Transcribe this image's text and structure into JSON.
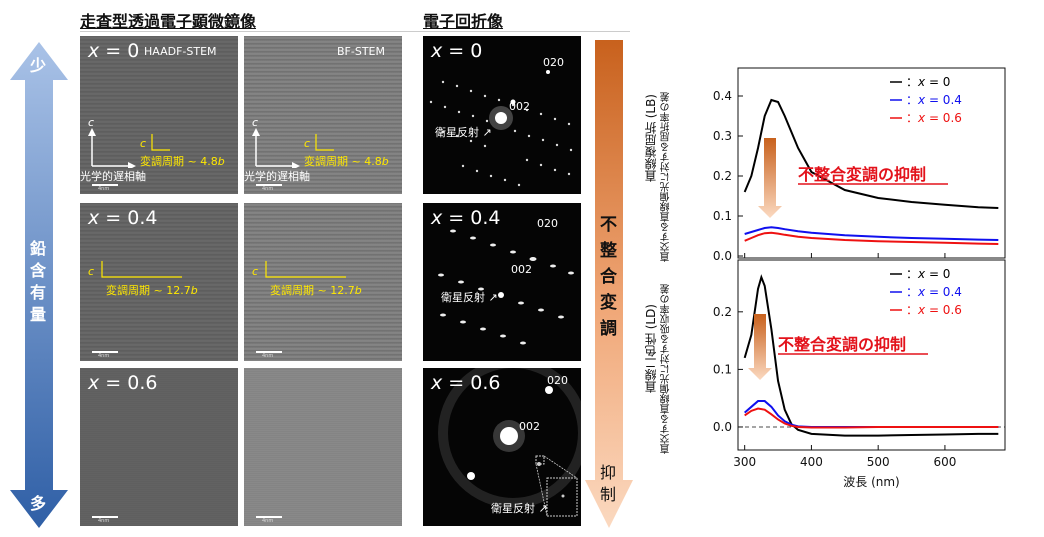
{
  "headers": {
    "stem": "走査型透過電子顕微鏡像",
    "diffraction": "電子回折像"
  },
  "left_arrow": {
    "top": "少",
    "middle": "鉛含有量",
    "bottom": "多"
  },
  "rows": [
    {
      "x_var": "x",
      "x_val": " = 0",
      "period": "変調周期 ~ 4.8",
      "period_unit": "b"
    },
    {
      "x_var": "x",
      "x_val": " = 0.4",
      "period": "変調周期 ~ 12.7",
      "period_unit": "b"
    },
    {
      "x_var": "x",
      "x_val": " = 0.6"
    }
  ],
  "modes": {
    "haadf": "HAADF-STEM",
    "bf": "BF-STEM"
  },
  "axis": {
    "c": "c",
    "optic": "光学的遅相軸"
  },
  "scale_label": "4nm",
  "diff_labels": {
    "r020": "020",
    "r002": "002",
    "satellite": "衛星反射"
  },
  "mid_arrow": {
    "top": "不整合変調",
    "bottom": "抑制"
  },
  "chart_data": [
    {
      "type": "line",
      "ylabel": "直線複屈折 (LB)",
      "ylabel_sub": "直交する直線偏光に対する屈折率の差",
      "ylim": [
        -0.005,
        0.47
      ],
      "yticks": [
        "0.4",
        "0.3",
        "0.2",
        "0.1",
        "0.0"
      ],
      "annotation": "不整合変調の抑制",
      "series": [
        {
          "name_sym": "x",
          "name_val": " = 0",
          "color": "#000000",
          "x": [
            300,
            310,
            320,
            330,
            340,
            350,
            360,
            380,
            400,
            450,
            500,
            550,
            600,
            650,
            680
          ],
          "y": [
            0.16,
            0.2,
            0.27,
            0.35,
            0.39,
            0.385,
            0.35,
            0.27,
            0.21,
            0.165,
            0.145,
            0.135,
            0.128,
            0.122,
            0.12
          ]
        },
        {
          "name_sym": "x",
          "name_val": " = 0.4",
          "color": "#1010ee",
          "x": [
            300,
            310,
            320,
            330,
            340,
            350,
            360,
            380,
            400,
            450,
            500,
            550,
            600,
            650,
            680
          ],
          "y": [
            0.055,
            0.06,
            0.065,
            0.07,
            0.072,
            0.07,
            0.067,
            0.062,
            0.058,
            0.052,
            0.048,
            0.045,
            0.043,
            0.041,
            0.04
          ]
        },
        {
          "name_sym": "x",
          "name_val": " = 0.6",
          "color": "#ee1111",
          "x": [
            300,
            310,
            320,
            330,
            340,
            350,
            360,
            380,
            400,
            450,
            500,
            550,
            600,
            650,
            680
          ],
          "y": [
            0.038,
            0.045,
            0.052,
            0.057,
            0.058,
            0.056,
            0.053,
            0.048,
            0.045,
            0.04,
            0.037,
            0.035,
            0.033,
            0.031,
            0.03
          ]
        }
      ]
    },
    {
      "type": "line",
      "ylabel": "直線二色性 (LD)",
      "ylabel_sub": "直交する直線偏光に対する吸収率の差",
      "xlabel": "波長 (nm)",
      "ylim": [
        -0.04,
        0.29
      ],
      "xticks": [
        "300",
        "400",
        "500",
        "600"
      ],
      "yticks": [
        "0.2",
        "0.1",
        "0.0"
      ],
      "annotation": "不整合変調の抑制",
      "series": [
        {
          "name_sym": "x",
          "name_val": " = 0",
          "color": "#000000",
          "x": [
            300,
            305,
            310,
            315,
            320,
            325,
            330,
            340,
            350,
            360,
            370,
            380,
            400,
            450,
            500,
            550,
            600,
            650,
            680
          ],
          "y": [
            0.12,
            0.14,
            0.16,
            0.2,
            0.24,
            0.26,
            0.245,
            0.17,
            0.08,
            0.03,
            0.005,
            -0.005,
            -0.012,
            -0.015,
            -0.015,
            -0.014,
            -0.013,
            -0.012,
            -0.012
          ]
        },
        {
          "name_sym": "x",
          "name_val": " = 0.4",
          "color": "#1010ee",
          "x": [
            300,
            310,
            320,
            330,
            340,
            350,
            360,
            370,
            380,
            400,
            450,
            500,
            600,
            680
          ],
          "y": [
            0.025,
            0.035,
            0.045,
            0.045,
            0.035,
            0.02,
            0.01,
            0.004,
            0.001,
            0.0,
            0.0,
            0.0,
            0.0,
            0.0
          ]
        },
        {
          "name_sym": "x",
          "name_val": " = 0.6",
          "color": "#ee1111",
          "x": [
            300,
            310,
            320,
            330,
            340,
            350,
            360,
            370,
            380,
            400,
            450,
            500,
            600,
            680
          ],
          "y": [
            0.02,
            0.028,
            0.032,
            0.03,
            0.022,
            0.013,
            0.006,
            0.002,
            0.0,
            -0.001,
            -0.001,
            0.0,
            0.0,
            0.0
          ]
        }
      ]
    }
  ]
}
